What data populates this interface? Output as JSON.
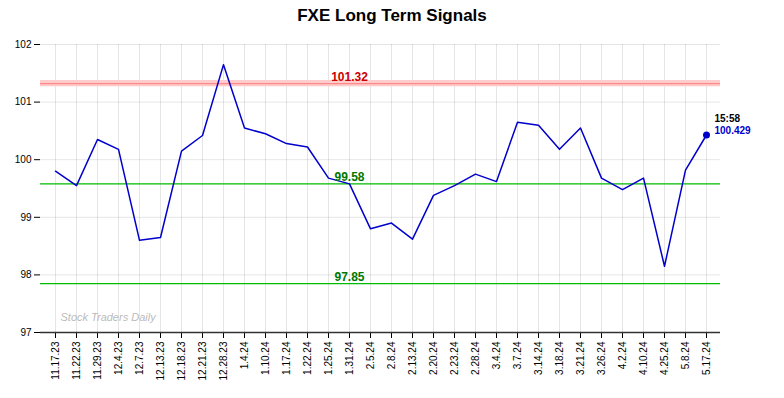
{
  "chart_data": {
    "type": "line",
    "title": "FXE Long Term Signals",
    "categories": [
      "11.17.23",
      "11.22.23",
      "11.29.23",
      "12.4.23",
      "12.7.23",
      "12.13.23",
      "12.18.23",
      "12.21.23",
      "12.28.23",
      "1.4.24",
      "1.10.24",
      "1.17.24",
      "1.22.24",
      "1.25.24",
      "1.31.24",
      "2.5.24",
      "2.8.24",
      "2.13.24",
      "2.20.24",
      "2.23.24",
      "2.28.24",
      "3.4.24",
      "3.7.24",
      "3.14.24",
      "3.18.24",
      "3.21.24",
      "3.26.24",
      "4.2.24",
      "4.10.24",
      "4.25.24",
      "5.8.24",
      "5.17.24"
    ],
    "values": [
      99.8,
      99.55,
      100.35,
      100.18,
      98.6,
      98.65,
      100.15,
      100.42,
      101.65,
      100.55,
      100.45,
      100.28,
      100.22,
      99.68,
      99.58,
      98.8,
      98.9,
      98.62,
      99.38,
      99.55,
      99.75,
      99.62,
      100.65,
      100.6,
      100.18,
      100.55,
      99.68,
      99.48,
      99.68,
      98.15,
      99.82,
      100.429
    ],
    "color": "#0000cc",
    "last_point_color": "#0000cc",
    "hlines": [
      {
        "value": 101.32,
        "label": "101.32",
        "color": "#ff8888",
        "band_color": "#ffcccc",
        "label_color": "#cc0000"
      },
      {
        "value": 99.58,
        "label": "99.58",
        "color": "#00bb00",
        "label_color": "#007700"
      },
      {
        "value": 97.85,
        "label": "97.85",
        "color": "#00bb00",
        "label_color": "#007700"
      }
    ],
    "annotations": [
      {
        "text": "15:58",
        "color": "#000000"
      },
      {
        "text": "100.429",
        "color": "#0000cc"
      }
    ],
    "watermark": {
      "text": "Stock Traders Daily",
      "color": "#bbbbbb"
    },
    "ylim": [
      97.0,
      102.0
    ],
    "yticks": [
      97,
      98,
      99,
      100,
      101,
      102
    ],
    "grid": true
  }
}
